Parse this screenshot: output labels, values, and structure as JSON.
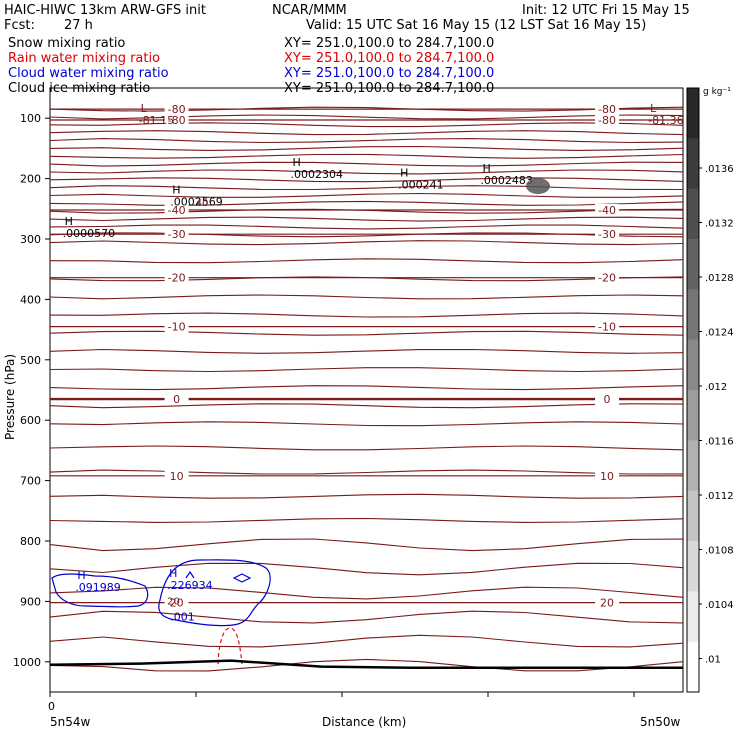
{
  "header": {
    "title": "HAIC-HIWC 13km ARW-GFS init",
    "org": "NCAR/MMM",
    "init": "Init: 12 UTC Fri 15 May 15",
    "fcst_label": "Fcst:",
    "fcst_value": "27 h",
    "valid": "Valid: 15 UTC Sat 16 May 15 (12 LST Sat 16 May 15)"
  },
  "fields": [
    {
      "name": "Snow mixing ratio",
      "xy": "XY= 251.0,100.0 to 284.7,100.0",
      "color": "#000000"
    },
    {
      "name": "Rain water mixing ratio",
      "xy": "XY= 251.0,100.0 to 284.7,100.0",
      "color": "#e00000"
    },
    {
      "name": "Cloud water mixing ratio",
      "xy": "XY= 251.0,100.0 to 284.7,100.0",
      "color": "#0000d0"
    },
    {
      "name": "Cloud ice mixing ratio",
      "xy": "XY= 251.0,100.0 to 284.7,100.0",
      "color": "#000000"
    }
  ],
  "colorbar": {
    "unit": "g kg⁻¹",
    "labels": [
      ".0136",
      ".0132",
      ".0128",
      ".0124",
      ".012",
      ".0116",
      ".0112",
      ".0108",
      ".0104",
      ".01"
    ]
  },
  "chart_data": {
    "type": "contour",
    "ylabel": "Pressure (hPa)",
    "xlabel": "Distance (km)",
    "y_ticks": [
      "100",
      "200",
      "300",
      "400",
      "500",
      "600",
      "700",
      "800",
      "900",
      "1000"
    ],
    "ylim": [
      50,
      1050
    ],
    "x_tick_zero": "0",
    "x_left_label": "5n54w",
    "x_right_label": "5n50w",
    "temperature_contours": [
      {
        "value": -80,
        "label": "-80",
        "pressure": 85
      },
      {
        "value": -80,
        "label": "-80",
        "pressure": 103
      },
      {
        "value": -40,
        "label": "-40",
        "pressure": 252
      },
      {
        "value": -30,
        "label": "-30",
        "pressure": 292
      },
      {
        "value": -20,
        "label": "-20",
        "pressure": 364
      },
      {
        "value": -10,
        "label": "-10",
        "pressure": 445
      },
      {
        "value": 0,
        "label": "0",
        "pressure": 565
      },
      {
        "value": 10,
        "label": "10",
        "pressure": 692
      },
      {
        "value": 20,
        "label": "20",
        "pressure": 902
      }
    ],
    "extrema": [
      {
        "kind": "L",
        "value": "-81.15",
        "distance_frac": 0.14,
        "pressure": 103
      },
      {
        "kind": "L",
        "value": "-81.36",
        "distance_frac": 0.945,
        "pressure": 103
      },
      {
        "kind": "H",
        "value": ".0000570",
        "distance_frac": 0.02,
        "pressure": 290,
        "color": "#000000"
      },
      {
        "kind": "H",
        "value": ".0002569",
        "distance_frac": 0.19,
        "pressure": 238,
        "color": "#000000"
      },
      {
        "kind": "H",
        "value": ".0002304",
        "distance_frac": 0.38,
        "pressure": 192,
        "color": "#000000"
      },
      {
        "kind": "H",
        "value": ".000241",
        "distance_frac": 0.55,
        "pressure": 210,
        "color": "#000000"
      },
      {
        "kind": "H",
        "value": ".0002483",
        "distance_frac": 0.68,
        "pressure": 202,
        "color": "#000000"
      },
      {
        "kind": "H",
        "value": ".091989",
        "distance_frac": 0.04,
        "pressure": 876,
        "color": "#0000d0"
      },
      {
        "kind": "H",
        "value": ".226934",
        "distance_frac": 0.185,
        "pressure": 873,
        "color": "#0000d0"
      }
    ],
    "cloud_labels": [
      {
        "value": ".001",
        "distance_frac": 0.19,
        "pressure": 932
      }
    ],
    "tick_labels_in_field": [
      {
        "value": "40",
        "distance_frac": 0.23,
        "pressure": 245
      },
      {
        "value": "20",
        "distance_frac": 0.185,
        "pressure": 905
      }
    ],
    "terrain_pressure": [
      1005,
      1003,
      998,
      1008,
      1010,
      1010,
      1010,
      1010
    ]
  }
}
